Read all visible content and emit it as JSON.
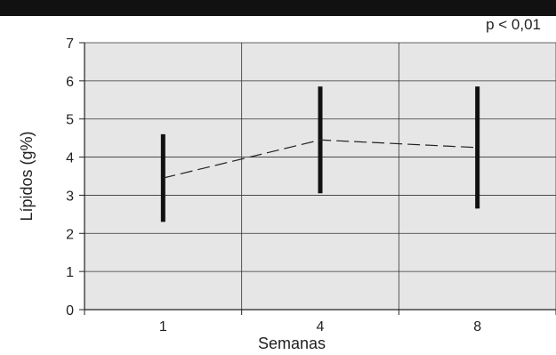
{
  "chart_data": {
    "type": "line",
    "title": "",
    "annotation": "p < 0,01",
    "xlabel": "Semanas",
    "ylabel": "Lípidos (g%)",
    "categories": [
      "1",
      "4",
      "8"
    ],
    "ylim": [
      0,
      7
    ],
    "yticks": [
      "0",
      "1",
      "2",
      "3",
      "4",
      "5",
      "6",
      "7"
    ],
    "grid": true,
    "series": [
      {
        "values": [
          3.45,
          4.45,
          4.25
        ],
        "error_low": [
          2.3,
          3.05,
          2.65
        ],
        "error_high": [
          4.6,
          5.85,
          5.85
        ],
        "line_style": "dashed"
      }
    ],
    "colors": {
      "plot_background": "#e6e6e6",
      "header_bar": "#111111",
      "grid": "#333333",
      "error_bar": "#111111",
      "line": "#222222"
    }
  }
}
